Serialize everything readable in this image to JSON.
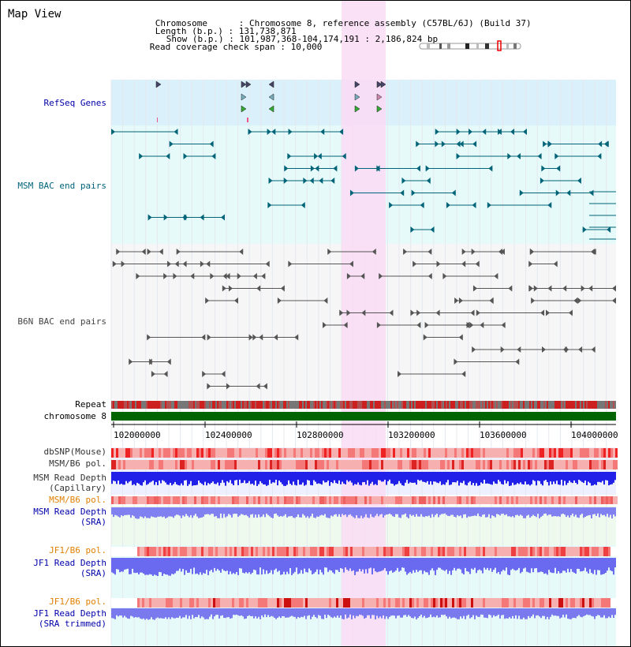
{
  "view_title": "Map View",
  "info": {
    "chromosome_label": "Chromosome",
    "chromosome_value": "Chromosome 8, reference assembly (C57BL/6J) (Build 37)",
    "length_label": "Length (b.p.)",
    "length_value": "131,738,871",
    "show_label": "Show (b.p.)",
    "show_value": "101,987,368-104,174,191 : 2,186,824 bp",
    "coverage_label": "Read coverage check span",
    "coverage_value": "10,000"
  },
  "tracks": {
    "refseq": "RefSeq Genes",
    "msm_bac": "MSM BAC end pairs",
    "b6n_bac": "B6N BAC end pairs",
    "repeat": "Repeat",
    "chromosome": "chromosome 8",
    "dbsnp": "dbSNP(Mouse)",
    "msm_b6_pol_1": "MSM/B6 pol.",
    "msm_read_depth_cap_1": "MSM Read Depth",
    "msm_read_depth_cap_2": "(Capillary)",
    "msm_b6_pol_2": "MSM/B6 pol.",
    "msm_read_depth_sra_1": "MSM Read Depth",
    "msm_read_depth_sra_2": "(SRA)",
    "jf1_b6_pol_1": "JF1/B6 pol.",
    "jf1_read_depth_sra_1": "JF1 Read Depth",
    "jf1_read_depth_sra_2": "(SRA)",
    "jf1_b6_pol_2": "JF1/B6 pol.",
    "jf1_read_depth_trim_1": "JF1 Read Depth",
    "jf1_read_depth_trim_2": "(SRA trimmed)"
  },
  "axis": {
    "ticks": [
      "102000000",
      "102400000",
      "102800000",
      "103200000",
      "103600000",
      "104000000"
    ]
  },
  "colors": {
    "highlight": "#fadcf5",
    "refseq_band": "#daf0fa",
    "msm_band": "#e6fafa",
    "msm_feature": "#006478",
    "b6n_feature": "#555555",
    "chromosome_bar": "#006400",
    "depth_blue": "#2020e8",
    "depth_light_blue": "#8080f0",
    "snp_red": "#ee2222"
  }
}
